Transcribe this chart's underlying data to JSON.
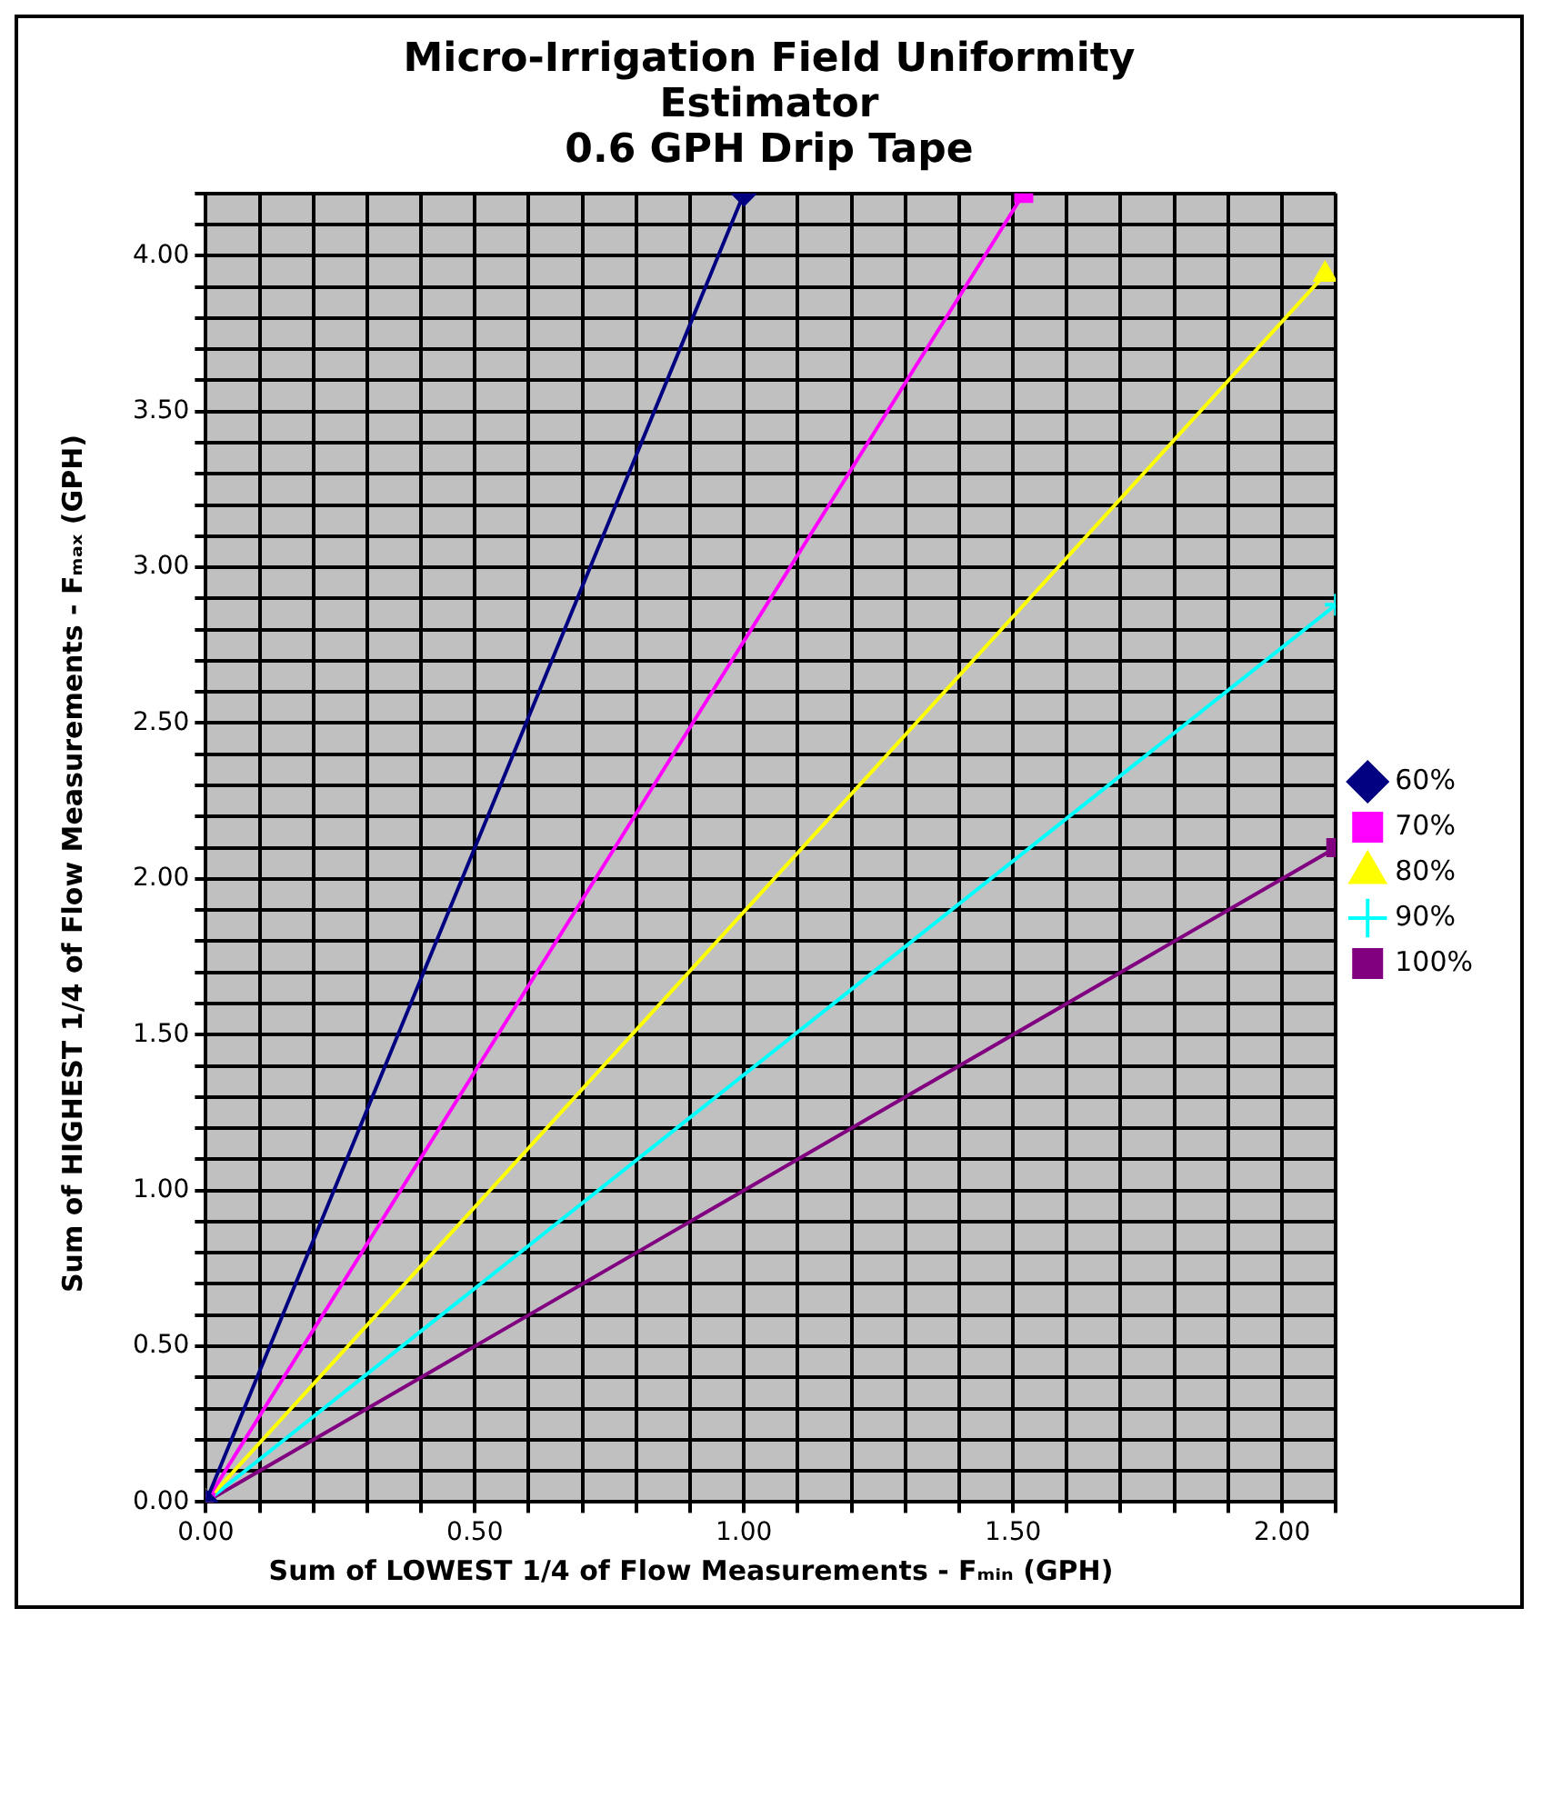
{
  "chart_data": {
    "type": "line",
    "title": "Micro-Irrigation Field Uniformity Estimator",
    "subtitle": "0.6 GPH Drip Tape",
    "xlabel": "Sum of LOWEST 1/4 of Flow Measurements - Fₘᵢₙ (GPH)",
    "ylabel": "Sum of HIGHEST 1/4 of Flow Measurements - Fₘₐₓ (GPH)",
    "xlim": [
      0,
      2.1
    ],
    "ylim": [
      0,
      4.2
    ],
    "xticks": [
      {
        "value": 0,
        "label": "0.00"
      },
      {
        "value": 0.1,
        "label": null
      },
      {
        "value": 0.2,
        "label": null
      },
      {
        "value": 0.3,
        "label": null
      },
      {
        "value": 0.4,
        "label": null
      },
      {
        "value": 0.5,
        "label": "0.50"
      },
      {
        "value": 0.6,
        "label": null
      },
      {
        "value": 0.7,
        "label": null
      },
      {
        "value": 0.8,
        "label": null
      },
      {
        "value": 0.9,
        "label": null
      },
      {
        "value": 1,
        "label": "1.00"
      },
      {
        "value": 1.1,
        "label": null
      },
      {
        "value": 1.2,
        "label": null
      },
      {
        "value": 1.3,
        "label": null
      },
      {
        "value": 1.4,
        "label": null
      },
      {
        "value": 1.5,
        "label": "1.50"
      },
      {
        "value": 1.6,
        "label": null
      },
      {
        "value": 1.7,
        "label": null
      },
      {
        "value": 1.8,
        "label": null
      },
      {
        "value": 1.9,
        "label": null
      },
      {
        "value": 2,
        "label": "2.00"
      },
      {
        "value": 2.1,
        "label": null
      }
    ],
    "yticks": [
      {
        "value": 0,
        "label": "0.00"
      },
      {
        "value": 0.1,
        "label": null
      },
      {
        "value": 0.2,
        "label": null
      },
      {
        "value": 0.3,
        "label": null
      },
      {
        "value": 0.4,
        "label": null
      },
      {
        "value": 0.5,
        "label": "0.50"
      },
      {
        "value": 0.6,
        "label": null
      },
      {
        "value": 0.7,
        "label": null
      },
      {
        "value": 0.8,
        "label": null
      },
      {
        "value": 0.9,
        "label": null
      },
      {
        "value": 1,
        "label": "1.00"
      },
      {
        "value": 1.1,
        "label": null
      },
      {
        "value": 1.2,
        "label": null
      },
      {
        "value": 1.3,
        "label": null
      },
      {
        "value": 1.4,
        "label": null
      },
      {
        "value": 1.5,
        "label": "1.50"
      },
      {
        "value": 1.6,
        "label": null
      },
      {
        "value": 1.7,
        "label": null
      },
      {
        "value": 1.8,
        "label": null
      },
      {
        "value": 1.9,
        "label": null
      },
      {
        "value": 2,
        "label": "2.00"
      },
      {
        "value": 2.1,
        "label": null
      },
      {
        "value": 2.2,
        "label": null
      },
      {
        "value": 2.3,
        "label": null
      },
      {
        "value": 2.4,
        "label": null
      },
      {
        "value": 2.5,
        "label": "2.50"
      },
      {
        "value": 2.6,
        "label": null
      },
      {
        "value": 2.7,
        "label": null
      },
      {
        "value": 2.8,
        "label": null
      },
      {
        "value": 2.9,
        "label": null
      },
      {
        "value": 3,
        "label": "3.00"
      },
      {
        "value": 3.1,
        "label": null
      },
      {
        "value": 3.2,
        "label": null
      },
      {
        "value": 3.3,
        "label": null
      },
      {
        "value": 3.4,
        "label": null
      },
      {
        "value": 3.5,
        "label": "3.50"
      },
      {
        "value": 3.6,
        "label": null
      },
      {
        "value": 3.7,
        "label": null
      },
      {
        "value": 3.8,
        "label": null
      },
      {
        "value": 3.9,
        "label": null
      },
      {
        "value": 4,
        "label": "4.00"
      },
      {
        "value": 4.1,
        "label": null
      },
      {
        "value": 4.2,
        "label": null
      }
    ],
    "grid": true,
    "legend": "right",
    "line_style": "solid",
    "series": [
      {
        "name": "60%",
        "color": "#000080",
        "marker": "diamond",
        "x": [
          0,
          1.0
        ],
        "values": [
          0,
          4.2
        ]
      },
      {
        "name": "70%",
        "color": "#ff00ff",
        "marker": "square",
        "x": [
          0,
          1.52
        ],
        "values": [
          0,
          4.2
        ]
      },
      {
        "name": "80%",
        "color": "#ffff00",
        "marker": "triangle",
        "x": [
          0,
          2.08
        ],
        "values": [
          0,
          3.94
        ]
      },
      {
        "name": "90%",
        "color": "#00ffff",
        "marker": "cross",
        "x": [
          0,
          2.1
        ],
        "values": [
          0,
          2.88
        ]
      },
      {
        "name": "100%",
        "color": "#800080",
        "marker": "square",
        "x": [
          0,
          2.1
        ],
        "values": [
          0,
          2.1
        ]
      }
    ]
  }
}
